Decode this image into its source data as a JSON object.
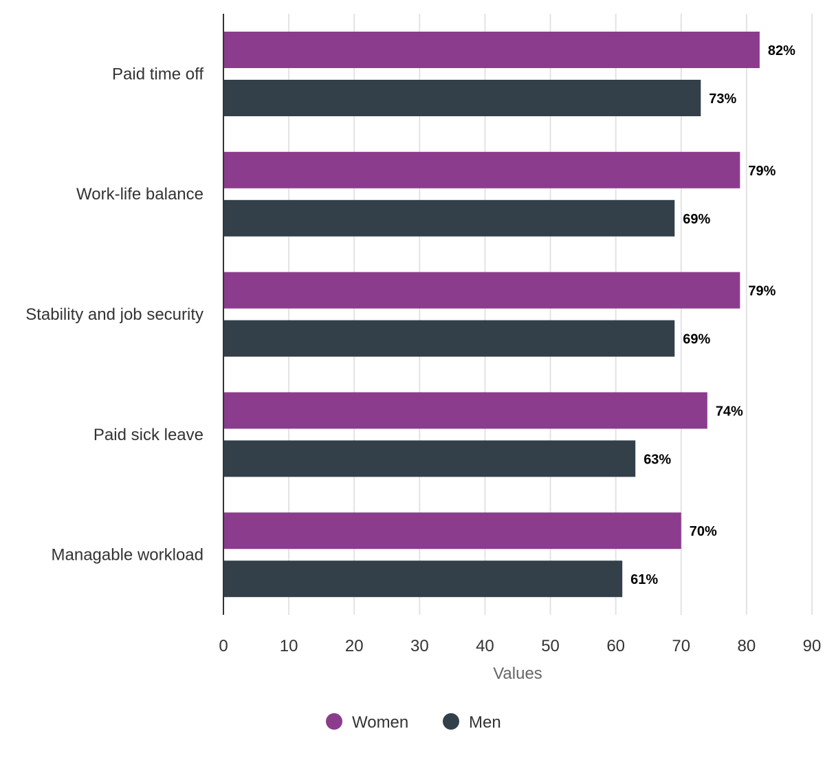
{
  "chart_data": {
    "type": "bar",
    "orientation": "horizontal",
    "categories": [
      "Paid time off",
      "Work-life balance",
      "Stability and job security",
      "Paid sick leave",
      "Managable workload"
    ],
    "series": [
      {
        "name": "Women",
        "color": "#8b3c8c",
        "values": [
          82,
          79,
          79,
          74,
          70
        ],
        "labels": [
          "82%",
          "79%",
          "79%",
          "74%",
          "70%"
        ]
      },
      {
        "name": "Men",
        "color": "#333f49",
        "values": [
          73,
          69,
          69,
          63,
          61
        ],
        "labels": [
          "73%",
          "69%",
          "69%",
          "63%",
          "61%"
        ]
      }
    ],
    "xlabel": "Values",
    "ylabel": "",
    "xlim": [
      0,
      90
    ],
    "xticks": [
      "0",
      "10",
      "20",
      "30",
      "40",
      "50",
      "60",
      "70",
      "80",
      "90"
    ],
    "grid": true,
    "legend_position": "bottom"
  }
}
